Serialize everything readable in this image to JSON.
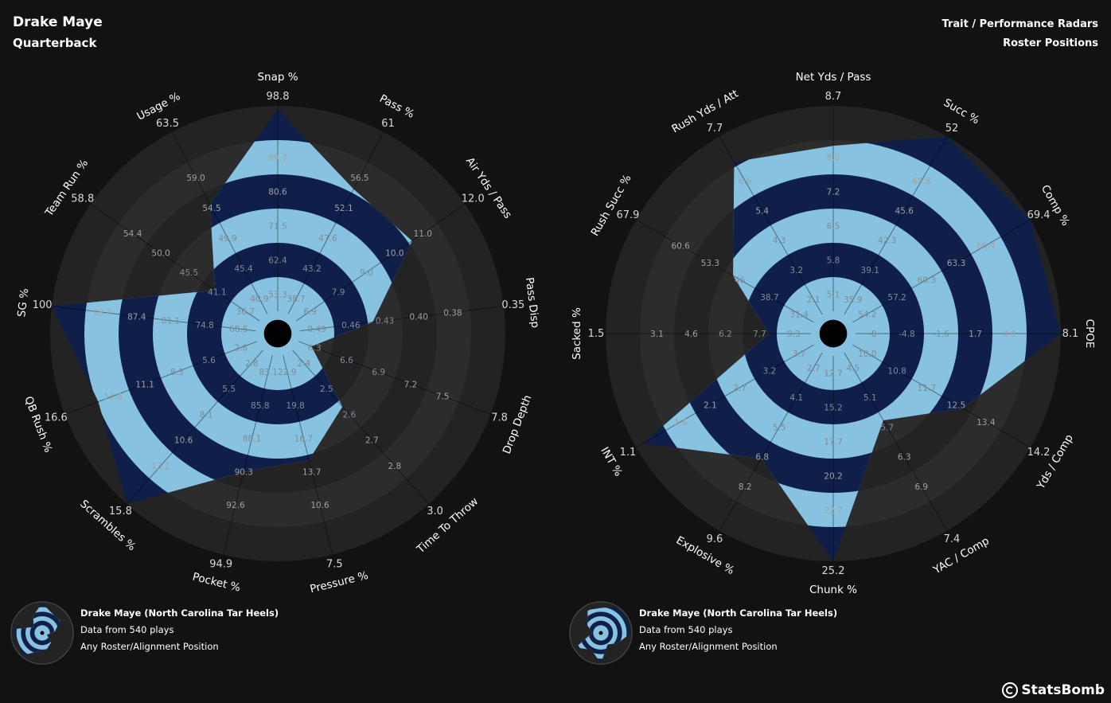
{
  "header": {
    "player_name": "Drake Maye",
    "position": "Quarterback",
    "report_title": "Trait / Performance Radars",
    "report_subtitle": "Roster Positions"
  },
  "legend": {
    "player_team": "Drake Maye (North Carolina Tar Heels)",
    "plays": "Data from 540 plays",
    "alignment": "Any Roster/Alignment Position"
  },
  "brand": {
    "name": "StatsBomb"
  },
  "colors": {
    "background": "#121212",
    "ring_bg_dark": "#232323",
    "ring_bg_light": "#2c2c2c",
    "polygon_light": "#87c3e0",
    "polygon_dark": "#0f1f4a"
  },
  "chart_data": [
    {
      "type": "radar",
      "title": "Trait Radar",
      "axes": [
        {
          "label": "Snap %",
          "value": 98.1,
          "ticks": [
            "53.3",
            "62.4",
            "71.5",
            "80.6",
            "89.7",
            "98.8"
          ]
        },
        {
          "label": "Pass %",
          "value": 54.0,
          "ticks": [
            "38.7",
            "43.2",
            "47.6",
            "52.1",
            "56.5",
            "61"
          ]
        },
        {
          "label": "Air Yds / Pass",
          "value": 10.4,
          "ticks": [
            "6.9",
            "7.9",
            "9.0",
            "10.0",
            "11.0",
            "12.0"
          ]
        },
        {
          "label": "Pass Disp",
          "value": 0.44,
          "ticks": [
            "0.49",
            "0.46",
            "0.43",
            "0.40",
            "0.38",
            "0.35"
          ]
        },
        {
          "label": "Drop Depth",
          "value": 6.4,
          "ticks": [
            "6.3",
            "6.6",
            "6.9",
            "7.2",
            "7.5",
            "7.8"
          ]
        },
        {
          "label": "Time To Throw",
          "value": 2.62,
          "ticks": [
            "2.4",
            "2.5",
            "2.6",
            "2.7",
            "2.8",
            "3.0"
          ]
        },
        {
          "label": "Pressure %",
          "value": 14.8,
          "ticks": [
            "22.9",
            "19.8",
            "16.7",
            "13.7",
            "10.6",
            "7.5"
          ]
        },
        {
          "label": "Pocket %",
          "value": 90.0,
          "ticks": [
            "83.1",
            "85.8",
            "88.1",
            "90.3",
            "92.6",
            "94.9"
          ]
        },
        {
          "label": "Scrambles %",
          "value": 15.8,
          "ticks": [
            "2.8",
            "5.5",
            "8.1",
            "10.6",
            "13.2",
            "15.8"
          ]
        },
        {
          "label": "QB Rush %",
          "value": 14.2,
          "ticks": [
            "2.8",
            "5.6",
            "8.3",
            "11.1",
            "13.8",
            "16.6"
          ]
        },
        {
          "label": "SG %",
          "value": 100,
          "ticks": [
            "68.5",
            "74.8",
            "81.1",
            "87.4",
            "93.7",
            "100"
          ]
        },
        {
          "label": "Team Run %",
          "value": 42.5,
          "ticks": [
            "36.7",
            "41.1",
            "45.5",
            "50.0",
            "54.4",
            "58.8"
          ]
        },
        {
          "label": "Usage %",
          "value": 54.5,
          "ticks": [
            "40.9",
            "45.4",
            "49.9",
            "54.5",
            "59.0",
            "63.5"
          ]
        }
      ]
    },
    {
      "type": "radar",
      "title": "Performance Radar",
      "axes": [
        {
          "label": "Net Yds / Pass",
          "value": 8.0,
          "ticks": [
            "5.1",
            "5.8",
            "6.5",
            "7.2",
            "8.0",
            "8.7"
          ]
        },
        {
          "label": "Succ %",
          "value": 52.0,
          "ticks": [
            "35.9",
            "39.1",
            "42.3",
            "45.6",
            "48.8",
            "52"
          ]
        },
        {
          "label": "Comp %",
          "value": 69.4,
          "ticks": [
            "54.2",
            "57.2",
            "60.3",
            "63.3",
            "66.4",
            "69.4"
          ]
        },
        {
          "label": "CPOE",
          "value": 8.1,
          "ticks": [
            "-8",
            "-4.8",
            "-1.6",
            "1.7",
            "4.9",
            "8.1"
          ]
        },
        {
          "label": "Yds / Comp",
          "value": 12.6,
          "ticks": [
            "10.0",
            "10.8",
            "11.7",
            "12.5",
            "13.4",
            "14.2"
          ]
        },
        {
          "label": "YAC / Comp",
          "value": 5.6,
          "ticks": [
            "4.5",
            "5.1",
            "5.7",
            "6.3",
            "6.9",
            "7.4"
          ]
        },
        {
          "label": "Chunk %",
          "value": 25.2,
          "ticks": [
            "12.7",
            "15.2",
            "17.7",
            "20.2",
            "22.7",
            "25.2"
          ]
        },
        {
          "label": "Explosive %",
          "value": 6.8,
          "ticks": [
            "2.7",
            "4.1",
            "5.5",
            "6.8",
            "8.2",
            "9.6"
          ]
        },
        {
          "label": "INT %",
          "value": 1.2,
          "ticks": [
            "3.7",
            "3.2",
            "2.7",
            "2.1",
            "1.6",
            "1.1"
          ]
        },
        {
          "label": "Sacked %",
          "value": 7.7,
          "ticks": [
            "9.3",
            "7.7",
            "6.2",
            "4.6",
            "3.1",
            "1.5"
          ]
        },
        {
          "label": "Rush Succ %",
          "value": 48.0,
          "ticks": [
            "31.4",
            "38.7",
            "46",
            "53.3",
            "60.6",
            "67.9"
          ]
        },
        {
          "label": "Rush Yds / Att",
          "value": 6.9,
          "ticks": [
            "2.1",
            "3.2",
            "4.3",
            "5.4",
            "6.6",
            "7.7"
          ]
        }
      ]
    }
  ]
}
